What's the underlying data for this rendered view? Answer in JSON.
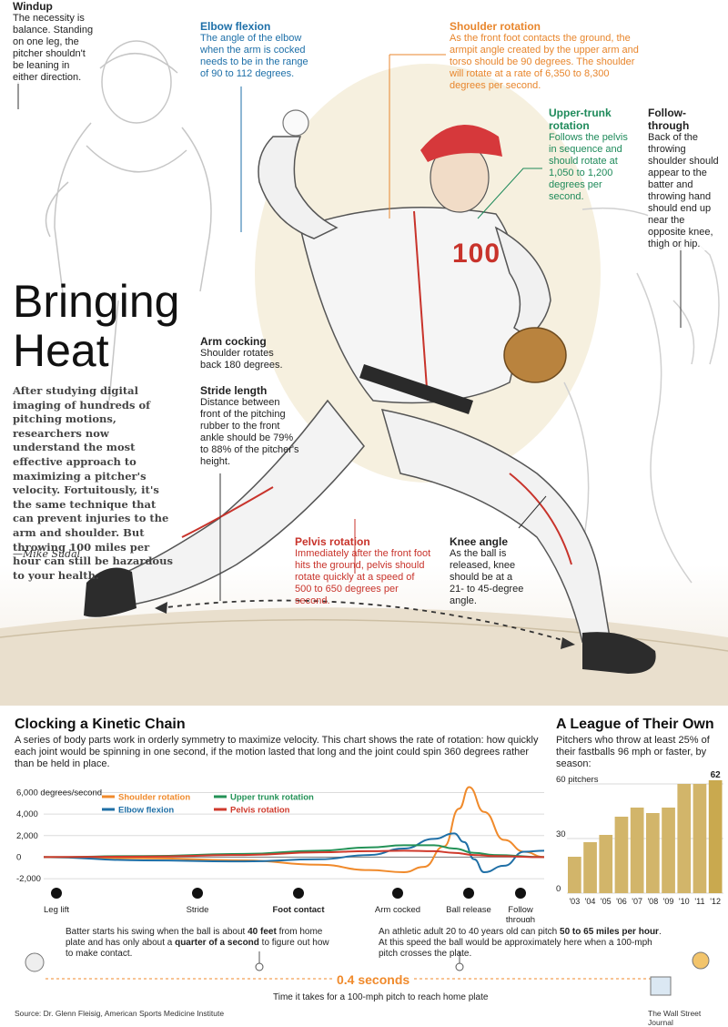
{
  "hero": {
    "title_line1": "Bringing",
    "title_line2": "Heat",
    "intro": "After studying digital imaging of hundreds of pitching motions, researchers now understand the most effective approach to maximizing a pitcher's velocity. Fortuitously, it's the same technique that can prevent injuries to the arm and shoulder. But throwing 100 miles per hour can still be hazardous to your health.",
    "byline": "—Mike Sudal",
    "jersey_number": "100",
    "annotations": {
      "windup": {
        "title": "Windup",
        "body": "The necessity is balance. Standing on one leg, the pitcher shouldn't be leaning in either direction."
      },
      "elbow": {
        "title": "Elbow flexion",
        "body": "The angle of the elbow when the arm is cocked needs to be in the range of 90 to 112 degrees."
      },
      "shoulder": {
        "title": "Shoulder rotation",
        "body": "As the front foot contacts the ground, the armpit angle created by the upper arm and torso should be 90 degrees. The shoulder will rotate at a rate of 6,350 to 8,300 degrees per second."
      },
      "upper_trunk": {
        "title": "Upper-trunk rotation",
        "body": "Follows the pelvis in sequence and should rotate at 1,050 to 1,200 degrees per second."
      },
      "follow": {
        "title": "Follow-through",
        "body": "Back of the throwing shoulder should appear to the batter and throwing hand should end up near the opposite knee, thigh or hip."
      },
      "arm_cocking": {
        "title": "Arm cocking",
        "body": "Shoulder rotates back 180 degrees."
      },
      "stride": {
        "title": "Stride length",
        "body": "Distance between front of the pitching rubber to the front ankle should be 79% to 88% of the pitcher's height."
      },
      "pelvis": {
        "title": "Pelvis rotation",
        "body": "Immediately after the front foot hits the ground, pelvis should rotate quickly at a speed of 500 to 650 degrees per second."
      },
      "knee": {
        "title": "Knee angle",
        "body": "As the ball is released, knee should be at a 21- to 45-degree angle."
      }
    }
  },
  "kinetic": {
    "title": "Clocking a Kinetic Chain",
    "subtitle": "A series of body parts work in orderly symmetry to maximize velocity. This chart shows the rate of rotation: how quickly each joint would be spinning in one second, if the motion lasted that long and the joint could spin 360 degrees rather than be held in place.",
    "phases": [
      "Leg lift",
      "Stride",
      "Foot contact",
      "Arm cocked",
      "Ball release",
      "Follow through"
    ]
  },
  "league": {
    "title": "A League of Their Own",
    "subtitle": "Pitchers who throw at least 25% of their fastballs 96 mph or faster, by season:"
  },
  "timeline": {
    "batter_note_pre": "Batter starts his swing when the ball is about ",
    "batter_note_b1": "40 feet",
    "batter_note_mid": " from home plate and has only about a ",
    "batter_note_b2": "quarter of a second",
    "batter_note_post": " to figure out how to make contact.",
    "adult_note_pre": "An athletic adult 20 to 40 years old can pitch ",
    "adult_note_b": "50 to 65 miles per hour",
    "adult_note_post": ". At this speed the ball would be approximately here when a 100-mph pitch crosses the plate.",
    "seconds": "0.4 seconds",
    "seconds_caption": "Time it takes for a 100-mph pitch to reach home plate"
  },
  "footer": {
    "source": "Source: Dr. Glenn Fleisig, American Sports Medicine Institute",
    "credit": "The Wall Street Journal"
  },
  "colors": {
    "shoulder": "#f08a2b",
    "elbow": "#1f6fa6",
    "upper_trunk": "#249257",
    "pelvis": "#cf3a2c",
    "bar": "#d2b56a",
    "bar_last": "#c9a94f"
  },
  "chart_data": [
    {
      "type": "line",
      "title": "",
      "xlabel": "",
      "ylabel": "degrees/second",
      "y_ticks": [
        "6,000 degrees/second",
        "4,000",
        "2,000",
        "0",
        "-2,000"
      ],
      "ylim": [
        -2500,
        6800
      ],
      "xlim": [
        0,
        100
      ],
      "grid": true,
      "legend": "top-left",
      "series": [
        {
          "name": "Shoulder rotation",
          "x": [
            0,
            20,
            40,
            55,
            65,
            72,
            76,
            80,
            83,
            85,
            88,
            92,
            96,
            100
          ],
          "y": [
            0,
            -100,
            -300,
            -700,
            -1200,
            -1400,
            -900,
            1000,
            4500,
            6500,
            4200,
            1600,
            500,
            0
          ]
        },
        {
          "name": "Elbow flexion",
          "x": [
            0,
            20,
            40,
            55,
            65,
            72,
            78,
            82,
            84,
            86,
            88,
            92,
            96,
            100
          ],
          "y": [
            0,
            -300,
            -400,
            -200,
            200,
            800,
            1700,
            2200,
            1400,
            -200,
            -1400,
            -800,
            500,
            600
          ]
        },
        {
          "name": "Upper trunk rotation",
          "x": [
            0,
            20,
            40,
            55,
            65,
            72,
            78,
            82,
            86,
            90,
            100
          ],
          "y": [
            0,
            100,
            300,
            600,
            900,
            1100,
            1100,
            800,
            400,
            200,
            0
          ]
        },
        {
          "name": "Pelvis rotation",
          "x": [
            0,
            20,
            40,
            55,
            65,
            72,
            78,
            82,
            86,
            90,
            100
          ],
          "y": [
            0,
            50,
            200,
            450,
            550,
            600,
            550,
            400,
            200,
            100,
            0
          ]
        }
      ]
    },
    {
      "type": "bar",
      "title": "",
      "ylabel": "pitchers",
      "y_ticks": [
        "60 pitchers",
        "30",
        "0"
      ],
      "ylim": [
        0,
        66
      ],
      "categories": [
        "'03",
        "'04",
        "'05",
        "'06",
        "'07",
        "'08",
        "'09",
        "'10",
        "'11",
        "'12"
      ],
      "values": [
        20,
        28,
        32,
        42,
        47,
        44,
        47,
        60,
        60,
        62
      ],
      "data_labels": [
        "",
        "",
        "",
        "",
        "",
        "",
        "",
        "",
        "",
        "62"
      ]
    }
  ]
}
